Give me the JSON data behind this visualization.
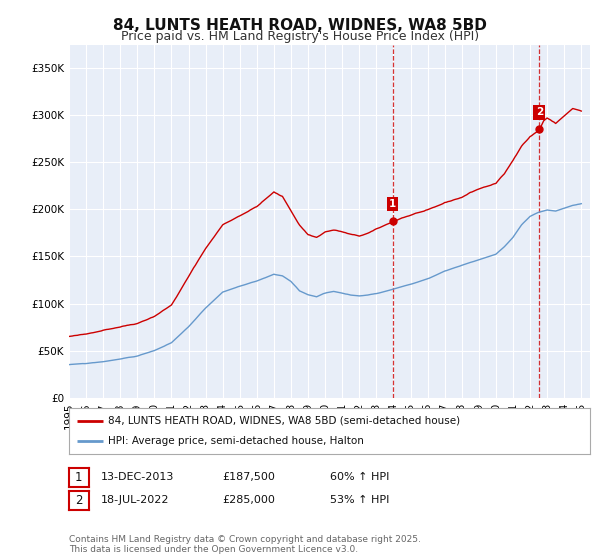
{
  "title": "84, LUNTS HEATH ROAD, WIDNES, WA8 5BD",
  "subtitle": "Price paid vs. HM Land Registry's House Price Index (HPI)",
  "background_color": "#ffffff",
  "plot_bg_color": "#e8eef8",
  "grid_color": "#ffffff",
  "red_color": "#cc0000",
  "blue_color": "#6699cc",
  "dashed_color": "#cc0000",
  "ylim": [
    0,
    375000
  ],
  "yticks": [
    0,
    50000,
    100000,
    150000,
    200000,
    250000,
    300000,
    350000
  ],
  "ytick_labels": [
    "£0",
    "£50K",
    "£100K",
    "£150K",
    "£200K",
    "£250K",
    "£300K",
    "£350K"
  ],
  "marker1_date": 2013.95,
  "marker1_value": 187500,
  "marker1_label": "1",
  "marker2_date": 2022.54,
  "marker2_value": 285000,
  "marker2_label": "2",
  "legend_line1": "84, LUNTS HEATH ROAD, WIDNES, WA8 5BD (semi-detached house)",
  "legend_line2": "HPI: Average price, semi-detached house, Halton",
  "ann1_date": "13-DEC-2013",
  "ann1_price": "£187,500",
  "ann1_hpi": "60% ↑ HPI",
  "ann2_date": "18-JUL-2022",
  "ann2_price": "£285,000",
  "ann2_hpi": "53% ↑ HPI",
  "footer_line1": "Contains HM Land Registry data © Crown copyright and database right 2025.",
  "footer_line2": "This data is licensed under the Open Government Licence v3.0.",
  "red_seed": 42,
  "blue_seed": 99
}
